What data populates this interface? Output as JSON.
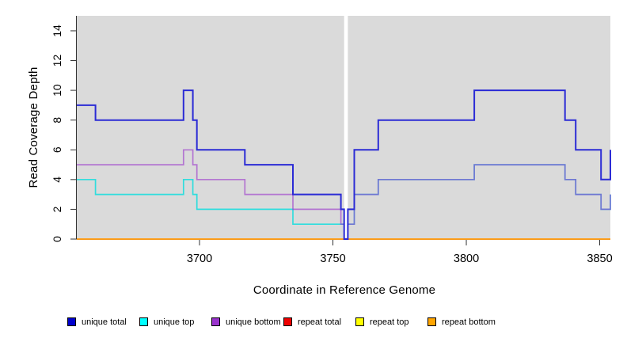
{
  "figure": {
    "x_axis_title": "Coordinate in Reference Genome",
    "y_axis_title": "Read Coverage Depth"
  },
  "chart_data": {
    "type": "line",
    "subtype": "step",
    "title": "",
    "xlabel": "Coordinate in Reference Genome",
    "ylabel": "Read Coverage Depth",
    "xlim": [
      3654,
      3854
    ],
    "ylim": [
      0,
      14.9
    ],
    "x_ticks": [
      3700,
      3750,
      3800,
      3850
    ],
    "y_ticks": [
      0,
      2,
      4,
      6,
      8,
      10,
      12,
      14
    ],
    "grid": "off",
    "plot_background": "#DADADA",
    "page_background": "#FFFFFF",
    "gap_region": {
      "x_start": 3754.2,
      "x_end": 3755.6,
      "color": "#FFFFFF",
      "note": "white vertical gap in coverage"
    },
    "series": [
      {
        "name": "repeat total",
        "color": "#DD0000",
        "opacity": 1,
        "width": 1.5,
        "steps": [
          [
            3654,
            0
          ],
          [
            3854,
            0
          ]
        ]
      },
      {
        "name": "repeat top",
        "color": "#FFFF00",
        "opacity": 1,
        "width": 1.5,
        "steps": [
          [
            3654,
            0
          ],
          [
            3854,
            0
          ]
        ]
      },
      {
        "name": "repeat bottom",
        "color": "#FF9C1B",
        "opacity": 1,
        "width": 1.7,
        "steps": [
          [
            3654,
            0
          ],
          [
            3854,
            0
          ]
        ]
      },
      {
        "name": "unique top",
        "color": "#00DEDE",
        "opacity": 0.78,
        "width": 1.7,
        "steps": [
          [
            3654,
            4
          ],
          [
            3661,
            3
          ],
          [
            3694,
            4
          ],
          [
            3697.5,
            3
          ],
          [
            3699,
            2
          ],
          [
            3735,
            1
          ],
          [
            3758,
            3
          ],
          [
            3767,
            4
          ],
          [
            3803,
            5
          ],
          [
            3837,
            4
          ],
          [
            3841,
            3
          ],
          [
            3850.5,
            2
          ],
          [
            3854,
            3
          ]
        ]
      },
      {
        "name": "unique bottom",
        "color": "#9932CC",
        "opacity": 0.6,
        "width": 1.7,
        "steps": [
          [
            3654,
            5
          ],
          [
            3694,
            6
          ],
          [
            3697.5,
            5
          ],
          [
            3699,
            4
          ],
          [
            3717,
            3
          ],
          [
            3735,
            2
          ],
          [
            3753,
            1
          ],
          [
            3758,
            3
          ],
          [
            3767,
            4
          ],
          [
            3803,
            5
          ],
          [
            3837,
            4
          ],
          [
            3841,
            3
          ],
          [
            3850.5,
            2
          ],
          [
            3854,
            3
          ]
        ]
      },
      {
        "name": "unique total",
        "color": "#2B2BD5",
        "opacity": 1,
        "width": 2,
        "above_gap": true,
        "steps": [
          [
            3654,
            9
          ],
          [
            3661,
            8
          ],
          [
            3694,
            10
          ],
          [
            3697.5,
            8
          ],
          [
            3699,
            6
          ],
          [
            3717,
            5
          ],
          [
            3735,
            3
          ],
          [
            3753,
            2
          ],
          [
            3754.2,
            0
          ],
          [
            3755.6,
            2
          ],
          [
            3758,
            6
          ],
          [
            3767,
            8
          ],
          [
            3803,
            10
          ],
          [
            3837,
            8
          ],
          [
            3841,
            6
          ],
          [
            3850.5,
            4
          ],
          [
            3854,
            6
          ]
        ]
      }
    ],
    "legend": [
      {
        "label": "unique total",
        "color": "#0000CC"
      },
      {
        "label": "unique top",
        "color": "#00FFFF"
      },
      {
        "label": "unique bottom",
        "color": "#9932CC"
      },
      {
        "label": "repeat total",
        "color": "#EE0000"
      },
      {
        "label": "repeat top",
        "color": "#FFFF00"
      },
      {
        "label": "repeat bottom",
        "color": "#FFA500"
      }
    ],
    "legend_position": "bottom"
  }
}
